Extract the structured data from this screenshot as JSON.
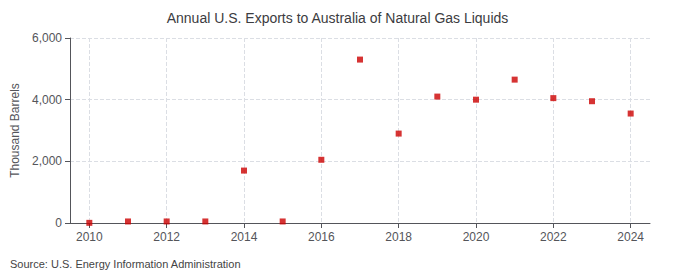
{
  "chart_data": {
    "type": "scatter",
    "title": "Annual U.S. Exports to Australia of Natural Gas Liquids",
    "ylabel": "Thousand Barrels",
    "annotations": [
      "Source: U.S. Energy Information Administration"
    ],
    "x": [
      2010,
      2011,
      2012,
      2013,
      2014,
      2015,
      2016,
      2017,
      2018,
      2019,
      2020,
      2021,
      2022,
      2023,
      2024
    ],
    "values": [
      5,
      50,
      50,
      50,
      1700,
      50,
      2050,
      5300,
      2900,
      4100,
      4000,
      4650,
      4050,
      3950,
      3550
    ],
    "color": "#cc0000",
    "marker": "square",
    "xlim": [
      2009.5,
      2024.5
    ],
    "xticks": [
      2010,
      2012,
      2014,
      2016,
      2018,
      2020,
      2022,
      2024
    ],
    "ylim": [
      0,
      6000
    ],
    "yticks": [
      0,
      {
        "value": 2000,
        "label": "2,000"
      },
      {
        "value": 4000,
        "label": "4,000"
      },
      {
        "value": 6000,
        "label": "6,000"
      }
    ],
    "grid": true
  }
}
